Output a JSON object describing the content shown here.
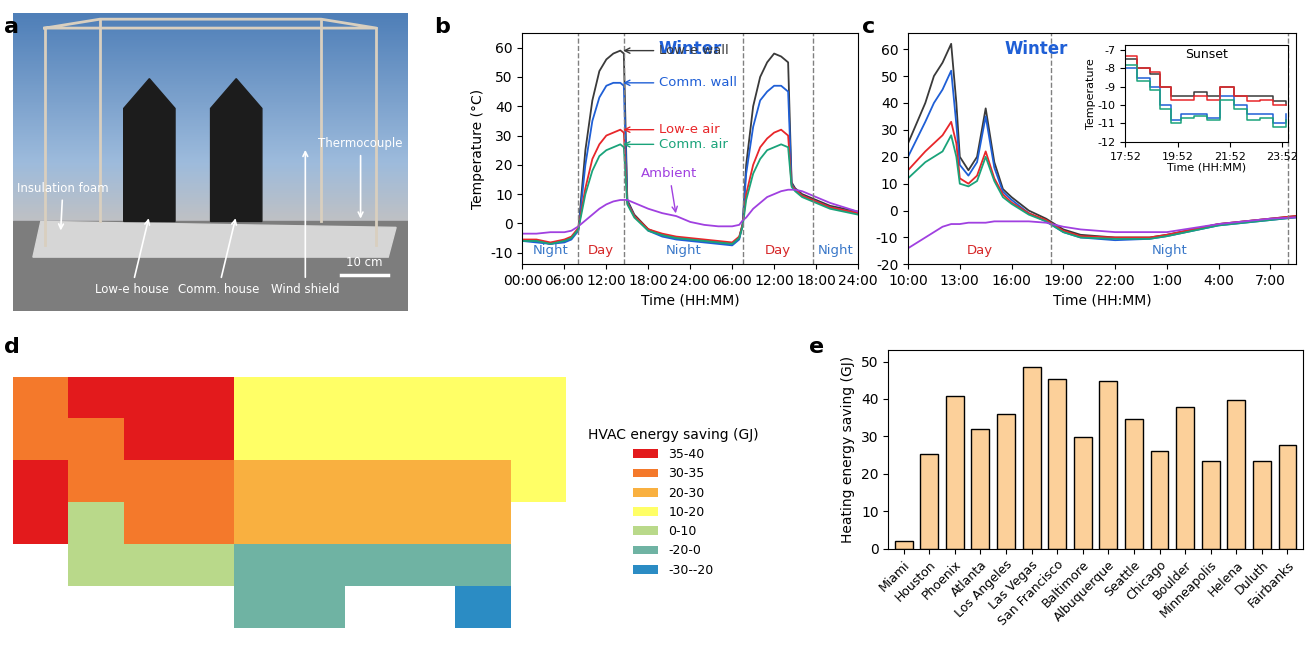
{
  "chart_data": [
    {
      "panel": "a",
      "type": "photo",
      "labels": [
        "Insulation foam",
        "Low-e house",
        "Comm. house",
        "Wind shield",
        "Thermocouple"
      ],
      "scale_bar": "10 cm"
    },
    {
      "panel": "b",
      "type": "line",
      "title": "Winter",
      "xlabel": "Time (HH:MM)",
      "ylabel": "Temperature (°C)",
      "xlim": [
        0,
        48
      ],
      "ylim": [
        -14,
        65
      ],
      "xticks": [
        {
          "value": 0,
          "label": "00:00"
        },
        {
          "value": 6,
          "label": "06:00"
        },
        {
          "value": 12,
          "label": "12:00"
        },
        {
          "value": 18,
          "label": "18:00"
        },
        {
          "value": 24,
          "label": "24:00"
        },
        {
          "value": 30,
          "label": "06:00"
        },
        {
          "value": 36,
          "label": "12:00"
        },
        {
          "value": 42,
          "label": "18:00"
        },
        {
          "value": 48,
          "label": "24:00"
        }
      ],
      "yticks": [
        -10,
        0,
        10,
        20,
        30,
        40,
        50,
        60
      ],
      "periods": [
        {
          "label": "Night",
          "start": 0,
          "end": 8,
          "color": "#3a78c9"
        },
        {
          "label": "Day",
          "start": 8,
          "end": 14.5,
          "color": "#d62728"
        },
        {
          "label": "Night",
          "start": 14.5,
          "end": 31.5,
          "color": "#3a78c9"
        },
        {
          "label": "Day",
          "start": 31.5,
          "end": 41.5,
          "color": "#d62728"
        },
        {
          "label": "Night",
          "start": 41.5,
          "end": 48,
          "color": "#3a78c9"
        }
      ],
      "x": [
        0,
        2,
        4,
        6,
        7,
        8,
        9,
        10,
        11,
        12,
        13,
        14,
        14.5,
        15,
        16,
        18,
        20,
        22,
        24,
        26,
        28,
        30,
        31,
        31.5,
        32,
        33,
        34,
        35,
        36,
        37,
        38,
        38.5,
        39,
        40,
        42,
        44,
        46,
        48
      ],
      "series": [
        {
          "name": "Low-e wall",
          "color": "#3a3a3a",
          "values": [
            -6,
            -6,
            -7,
            -6,
            -5,
            -2,
            25,
            42,
            52,
            56,
            58,
            59,
            58,
            8,
            3,
            -2,
            -4,
            -5,
            -5.5,
            -6,
            -6.5,
            -7,
            -5,
            0,
            20,
            40,
            50,
            55,
            58,
            57,
            55,
            14,
            12,
            10,
            8,
            6,
            5,
            4
          ]
        },
        {
          "name": "Comm. wall",
          "color": "#1f5fd6",
          "values": [
            -6,
            -6.5,
            -7,
            -6.5,
            -5.5,
            -2.5,
            20,
            35,
            43,
            47,
            48,
            48,
            47,
            7.5,
            2.5,
            -2.5,
            -4.5,
            -5.5,
            -6,
            -6.5,
            -7,
            -7.5,
            -5.5,
            -0.5,
            17,
            33,
            42,
            45,
            47,
            47,
            45,
            13.5,
            11.5,
            9.5,
            7.5,
            5.5,
            4.5,
            3.5
          ]
        },
        {
          "name": "Low-e air",
          "color": "#e8262a",
          "values": [
            -5.5,
            -5.5,
            -6.5,
            -5.5,
            -4.5,
            -1.5,
            12,
            22,
            27,
            30,
            31,
            32,
            31,
            7,
            2.5,
            -2,
            -3.5,
            -4.5,
            -5,
            -5.5,
            -6,
            -6.5,
            -4.5,
            -0.5,
            10,
            20,
            26,
            29,
            31,
            32,
            30,
            13,
            11.5,
            9.5,
            7.5,
            5.5,
            4.5,
            3.5
          ]
        },
        {
          "name": "Comm. air",
          "color": "#1aa37a",
          "values": [
            -6,
            -6,
            -7,
            -6,
            -5,
            -2,
            10,
            18,
            23,
            25,
            26,
            27,
            26,
            6.5,
            2,
            -2.5,
            -4,
            -5,
            -5.5,
            -6,
            -6.5,
            -7,
            -5,
            -1,
            8,
            17,
            22,
            25,
            26,
            27,
            26,
            12.5,
            11,
            9,
            7,
            5,
            4,
            3
          ]
        },
        {
          "name": "Ambient",
          "color": "#a040e0",
          "values": [
            -3.5,
            -3.5,
            -3,
            -3,
            -2.5,
            -1,
            1,
            3,
            5,
            6.5,
            7.5,
            8,
            8,
            8,
            7,
            5,
            3.5,
            2.5,
            0.5,
            -0.5,
            -1,
            -1,
            -0.5,
            1,
            2,
            5,
            7,
            9,
            10,
            11,
            11.5,
            11.5,
            11.5,
            11,
            9,
            7,
            5.5,
            4
          ]
        }
      ]
    },
    {
      "panel": "c",
      "type": "line",
      "title": "Winter",
      "xlabel": "Time (HH:MM)",
      "xlim": [
        10,
        32.5
      ],
      "ylim": [
        -20,
        66
      ],
      "xticks": [
        {
          "value": 10,
          "label": "10:00"
        },
        {
          "value": 13,
          "label": "13:00"
        },
        {
          "value": 16,
          "label": "16:00"
        },
        {
          "value": 19,
          "label": "19:00"
        },
        {
          "value": 22,
          "label": "22:00"
        },
        {
          "value": 25,
          "label": "1:00"
        },
        {
          "value": 28,
          "label": "4:00"
        },
        {
          "value": 31,
          "label": "7:00"
        }
      ],
      "yticks": [
        -20,
        -10,
        0,
        10,
        20,
        30,
        40,
        50,
        60
      ],
      "periods": [
        {
          "label": "Day",
          "start": 10,
          "end": 18.3,
          "color": "#d62728"
        },
        {
          "label": "Night",
          "start": 18.3,
          "end": 32,
          "color": "#3a78c9"
        }
      ],
      "x": [
        10,
        11,
        11.5,
        12,
        12.5,
        12.8,
        13,
        13.5,
        14,
        14.5,
        15,
        15.5,
        16,
        17,
        18,
        19,
        20,
        22,
        24,
        25,
        28,
        31,
        32.5
      ],
      "series": [
        {
          "color": "#3a3a3a",
          "values": [
            25,
            40,
            50,
            55,
            62,
            40,
            20,
            15,
            20,
            38,
            18,
            8,
            5,
            0,
            -3,
            -7,
            -9,
            -10,
            -10,
            -9,
            -5,
            -3,
            -2
          ]
        },
        {
          "color": "#1f5fd6",
          "values": [
            20,
            33,
            40,
            45,
            52,
            32,
            17,
            13,
            18,
            35,
            16,
            7,
            4,
            -1,
            -4,
            -8,
            -10,
            -11,
            -10.5,
            -9.5,
            -5.5,
            -3.5,
            -2.5
          ]
        },
        {
          "color": "#e8262a",
          "values": [
            15,
            22,
            25,
            28,
            33,
            25,
            12,
            10,
            13,
            22,
            12,
            6,
            3,
            -1,
            -3.5,
            -7.5,
            -9.5,
            -10,
            -10,
            -9,
            -5,
            -3,
            -2
          ]
        },
        {
          "color": "#1aa37a",
          "values": [
            12,
            18,
            20,
            22,
            28,
            20,
            10,
            9,
            11,
            20,
            11,
            5,
            2.5,
            -1.5,
            -4,
            -8,
            -10,
            -10.5,
            -10.5,
            -9.5,
            -5.5,
            -3.5,
            -2.5
          ]
        },
        {
          "color": "#a040e0",
          "values": [
            -14,
            -10,
            -8,
            -6,
            -5,
            -5,
            -5,
            -4.5,
            -4.5,
            -4.5,
            -4,
            -4,
            -4,
            -4,
            -4.5,
            -6,
            -7,
            -8,
            -8,
            -8,
            -5,
            -3,
            -2.5
          ]
        }
      ],
      "inset": {
        "title": "Sunset",
        "xlabel": "Time (HH:MM)",
        "ylabel": "Temperature",
        "xlim": [
          17.867,
          24.1
        ],
        "ylim": [
          -12,
          -6.7
        ],
        "xticks": [
          {
            "value": 17.867,
            "label": "17:52"
          },
          {
            "value": 19.867,
            "label": "19:52"
          },
          {
            "value": 21.867,
            "label": "21:52"
          },
          {
            "value": 23.867,
            "label": "23:52"
          }
        ],
        "yticks": [
          -12,
          -11,
          -10,
          -9,
          -8,
          -7
        ],
        "x": [
          17.87,
          18.3,
          18.8,
          19.2,
          19.6,
          20,
          20.5,
          21,
          21.5,
          22,
          22.5,
          23,
          23.5,
          24
        ],
        "series": [
          {
            "color": "#3a3a3a",
            "values": [
              -7.5,
              -8,
              -8.3,
              -9,
              -9.5,
              -9.5,
              -9.3,
              -9.5,
              -9,
              -9.5,
              -9.5,
              -9.5,
              -9.8,
              -10
            ]
          },
          {
            "color": "#1f5fd6",
            "values": [
              -8,
              -8.5,
              -9,
              -10,
              -10.8,
              -10.5,
              -10.5,
              -10.7,
              -9.5,
              -10,
              -10.5,
              -10.5,
              -11,
              -10.5
            ]
          },
          {
            "color": "#e8262a",
            "values": [
              -7.3,
              -8,
              -8.2,
              -9,
              -9.7,
              -9.7,
              -9.5,
              -9.7,
              -9,
              -9.5,
              -9.8,
              -9.7,
              -10,
              -10
            ]
          },
          {
            "color": "#1aa37a",
            "values": [
              -7.8,
              -8.7,
              -9.2,
              -10.2,
              -11,
              -10.7,
              -10.6,
              -10.8,
              -9.7,
              -10.2,
              -10.8,
              -10.7,
              -11.2,
              -10.8
            ]
          }
        ]
      }
    },
    {
      "panel": "d",
      "type": "map",
      "legend_title": "HVAC energy saving (GJ)",
      "legend": "center left",
      "tick_labels": false,
      "classes": [
        {
          "label": "35-40",
          "color": "#e31a1c"
        },
        {
          "label": "30-35",
          "color": "#f4792b"
        },
        {
          "label": "20-30",
          "color": "#f9b040"
        },
        {
          "label": "10-20",
          "color": "#ffff66"
        },
        {
          "label": "0-10",
          "color": "#b9d98a"
        },
        {
          "label": "-20-0",
          "color": "#6fb3a3"
        },
        {
          "label": "-30--20",
          "color": "#2b8cc4"
        }
      ],
      "cells": [
        [
          1,
          0,
          0,
          0,
          3,
          3,
          3,
          3,
          3,
          3
        ],
        [
          1,
          1,
          0,
          0,
          3,
          3,
          3,
          3,
          3,
          3
        ],
        [
          0,
          1,
          1,
          1,
          2,
          2,
          2,
          2,
          2,
          3
        ],
        [
          0,
          4,
          1,
          1,
          2,
          2,
          2,
          2,
          2,
          null
        ],
        [
          null,
          4,
          4,
          4,
          5,
          5,
          5,
          5,
          5,
          null
        ],
        [
          null,
          null,
          null,
          null,
          5,
          5,
          null,
          null,
          6,
          null
        ]
      ]
    },
    {
      "panel": "e",
      "type": "bar",
      "ylabel": "Heating energy saving (GJ)",
      "color": "#fcd09a",
      "categories": [
        "Miami",
        "Houston",
        "Phoenix",
        "Atlanta",
        "Los Angeles",
        "Las Vegas",
        "San Francisco",
        "Baltimore",
        "Albuquerque",
        "Seattle",
        "Chicago",
        "Boulder",
        "Minneapolis",
        "Helena",
        "Duluth",
        "Fairbanks"
      ],
      "values": [
        2,
        25.3,
        40.8,
        32,
        36,
        48.5,
        45.3,
        29.8,
        44.7,
        34.6,
        26.2,
        37.9,
        23.5,
        39.8,
        23.5,
        27.6
      ],
      "ylim": [
        0,
        53
      ],
      "yticks": [
        0,
        10,
        20,
        30,
        40,
        50
      ]
    }
  ]
}
